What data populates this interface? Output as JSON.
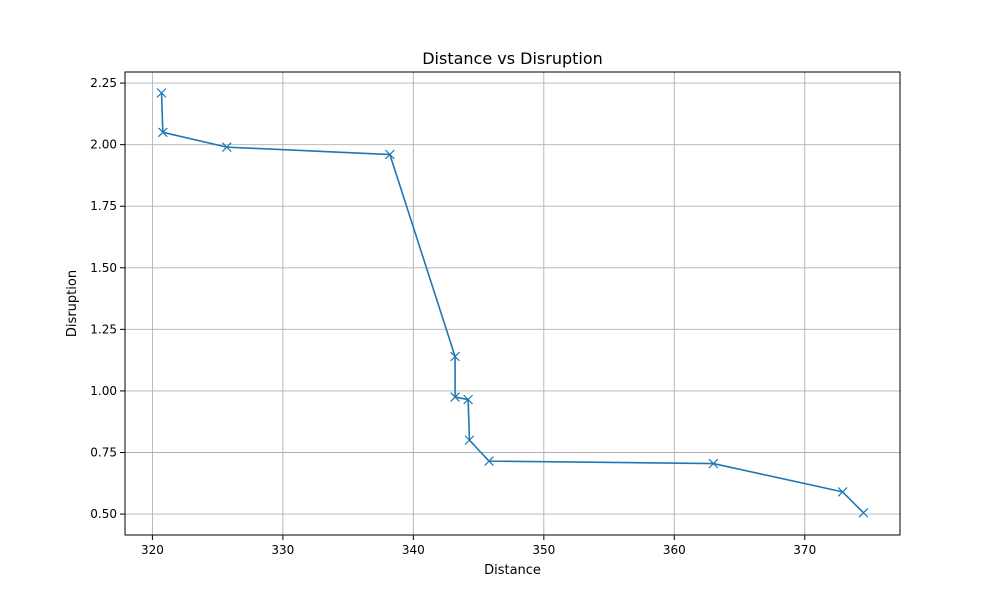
{
  "chart_data": {
    "type": "line",
    "title": "Distance vs Disruption",
    "xlabel": "Distance",
    "ylabel": "Disruption",
    "xlim": [
      317.9,
      377.3
    ],
    "ylim": [
      0.415,
      2.295
    ],
    "x_ticks": [
      320,
      330,
      340,
      350,
      360,
      370
    ],
    "y_ticks": [
      0.5,
      0.75,
      1.0,
      1.25,
      1.5,
      1.75,
      2.0,
      2.25
    ],
    "x_tick_labels": [
      "320",
      "330",
      "340",
      "350",
      "360",
      "370"
    ],
    "y_tick_labels": [
      "0.50",
      "0.75",
      "1.00",
      "1.25",
      "1.50",
      "1.75",
      "2.00",
      "2.25"
    ],
    "grid": true,
    "marker": "x",
    "series": [
      {
        "color": "#1f77b4",
        "points": [
          {
            "x": 320.7,
            "y": 2.21
          },
          {
            "x": 320.8,
            "y": 2.05
          },
          {
            "x": 325.7,
            "y": 1.99
          },
          {
            "x": 338.2,
            "y": 1.96
          },
          {
            "x": 343.2,
            "y": 1.14
          },
          {
            "x": 343.2,
            "y": 0.975
          },
          {
            "x": 344.2,
            "y": 0.965
          },
          {
            "x": 344.3,
            "y": 0.8
          },
          {
            "x": 345.8,
            "y": 0.715
          },
          {
            "x": 363.0,
            "y": 0.705
          },
          {
            "x": 372.9,
            "y": 0.59
          },
          {
            "x": 374.5,
            "y": 0.505
          }
        ]
      }
    ]
  }
}
